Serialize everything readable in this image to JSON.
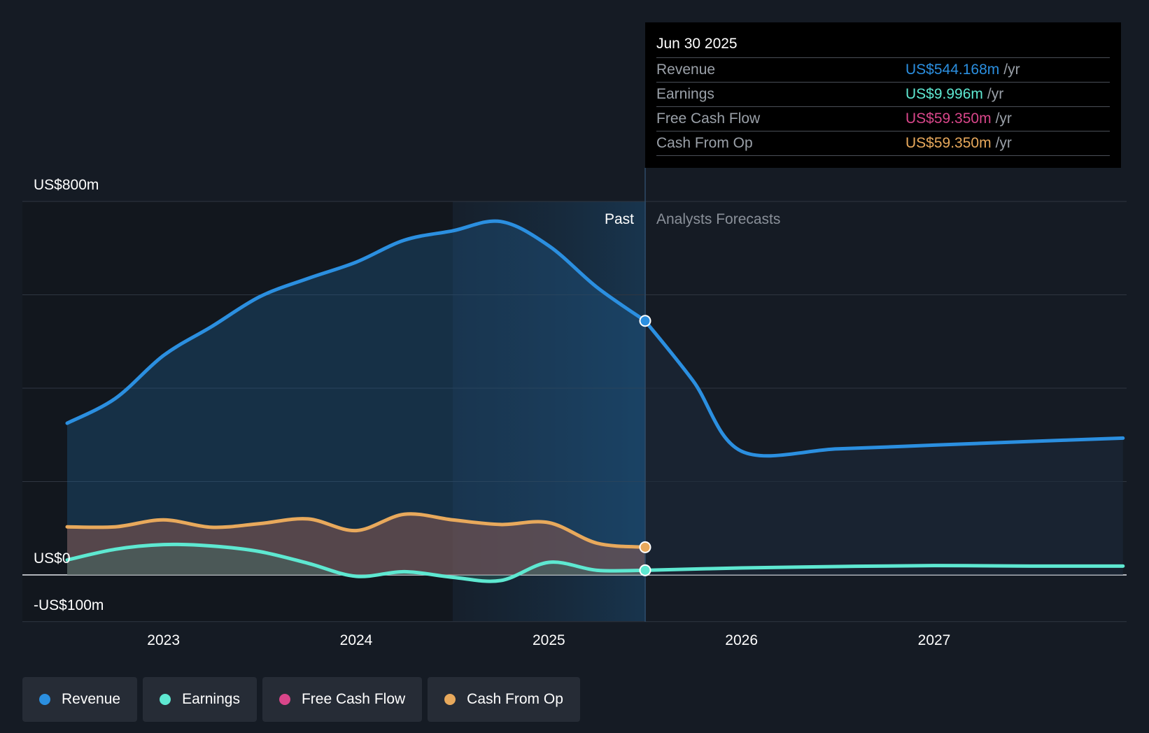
{
  "chart_data": {
    "type": "line",
    "title": "",
    "x_axis": {
      "ticks": [
        "2023",
        "2024",
        "2025",
        "2026",
        "2027"
      ],
      "range": [
        2022.5,
        2027.98
      ]
    },
    "y_axis": {
      "range": [
        -100,
        800
      ],
      "labels": [
        {
          "value": 800,
          "text": "US$800m"
        },
        {
          "value": 0,
          "text": "US$0"
        },
        {
          "value": -100,
          "text": "-US$100m"
        }
      ],
      "gridlines": [
        800,
        600,
        400,
        200,
        0,
        -100
      ]
    },
    "regions": {
      "past_label": "Past",
      "forecast_label": "Analysts Forecasts",
      "divider_x": 2025.5
    },
    "series": [
      {
        "name": "Revenue",
        "color": "#2b8fe0",
        "filled": true,
        "points": [
          [
            2022.5,
            325
          ],
          [
            2022.75,
            378
          ],
          [
            2023.0,
            470
          ],
          [
            2023.25,
            532
          ],
          [
            2023.5,
            596
          ],
          [
            2023.75,
            635
          ],
          [
            2024.0,
            670
          ],
          [
            2024.25,
            717
          ],
          [
            2024.5,
            737
          ],
          [
            2024.75,
            757
          ],
          [
            2025.0,
            705
          ],
          [
            2025.25,
            616
          ],
          [
            2025.5,
            544.168
          ]
        ],
        "forecast": [
          [
            2025.5,
            544.168
          ],
          [
            2025.75,
            415
          ],
          [
            2026.0,
            265
          ],
          [
            2026.5,
            270
          ],
          [
            2027.0,
            278
          ],
          [
            2027.5,
            286
          ],
          [
            2027.98,
            293
          ]
        ]
      },
      {
        "name": "Earnings",
        "color": "#5ee8d1",
        "filled": true,
        "points": [
          [
            2022.5,
            32
          ],
          [
            2022.75,
            55
          ],
          [
            2023.0,
            65
          ],
          [
            2023.25,
            62
          ],
          [
            2023.5,
            50
          ],
          [
            2023.75,
            25
          ],
          [
            2024.0,
            -3
          ],
          [
            2024.25,
            7
          ],
          [
            2024.5,
            -5
          ],
          [
            2024.75,
            -12
          ],
          [
            2025.0,
            27
          ],
          [
            2025.25,
            10
          ],
          [
            2025.5,
            9.996
          ]
        ],
        "forecast": [
          [
            2025.5,
            9.996
          ],
          [
            2026.0,
            15
          ],
          [
            2026.5,
            18
          ],
          [
            2027.0,
            20
          ],
          [
            2027.5,
            19
          ],
          [
            2027.98,
            19
          ]
        ]
      },
      {
        "name": "Free Cash Flow",
        "color": "#d9468a",
        "filled": false,
        "points": [],
        "forecast": []
      },
      {
        "name": "Cash From Op",
        "color": "#e8a95c",
        "filled": true,
        "points": [
          [
            2022.5,
            103
          ],
          [
            2022.75,
            103
          ],
          [
            2023.0,
            118
          ],
          [
            2023.25,
            102
          ],
          [
            2023.5,
            110
          ],
          [
            2023.75,
            120
          ],
          [
            2024.0,
            95
          ],
          [
            2024.25,
            130
          ],
          [
            2024.5,
            118
          ],
          [
            2024.75,
            108
          ],
          [
            2025.0,
            112
          ],
          [
            2025.25,
            68
          ],
          [
            2025.5,
            59.35
          ]
        ],
        "forecast": []
      }
    ],
    "highlight": {
      "x": 2025.5,
      "date": "Jun 30 2025"
    }
  },
  "tooltip": {
    "date": "Jun 30 2025",
    "rows": [
      {
        "label": "Revenue",
        "value": "US$544.168m",
        "unit": "/yr",
        "color": "#2b8fe0"
      },
      {
        "label": "Earnings",
        "value": "US$9.996m",
        "unit": "/yr",
        "color": "#5ee8d1"
      },
      {
        "label": "Free Cash Flow",
        "value": "US$59.350m",
        "unit": "/yr",
        "color": "#d9468a"
      },
      {
        "label": "Cash From Op",
        "value": "US$59.350m",
        "unit": "/yr",
        "color": "#e8a95c"
      }
    ]
  },
  "legend": [
    {
      "label": "Revenue",
      "color": "#2b8fe0"
    },
    {
      "label": "Earnings",
      "color": "#5ee8d1"
    },
    {
      "label": "Free Cash Flow",
      "color": "#d9468a"
    },
    {
      "label": "Cash From Op",
      "color": "#e8a95c"
    }
  ]
}
